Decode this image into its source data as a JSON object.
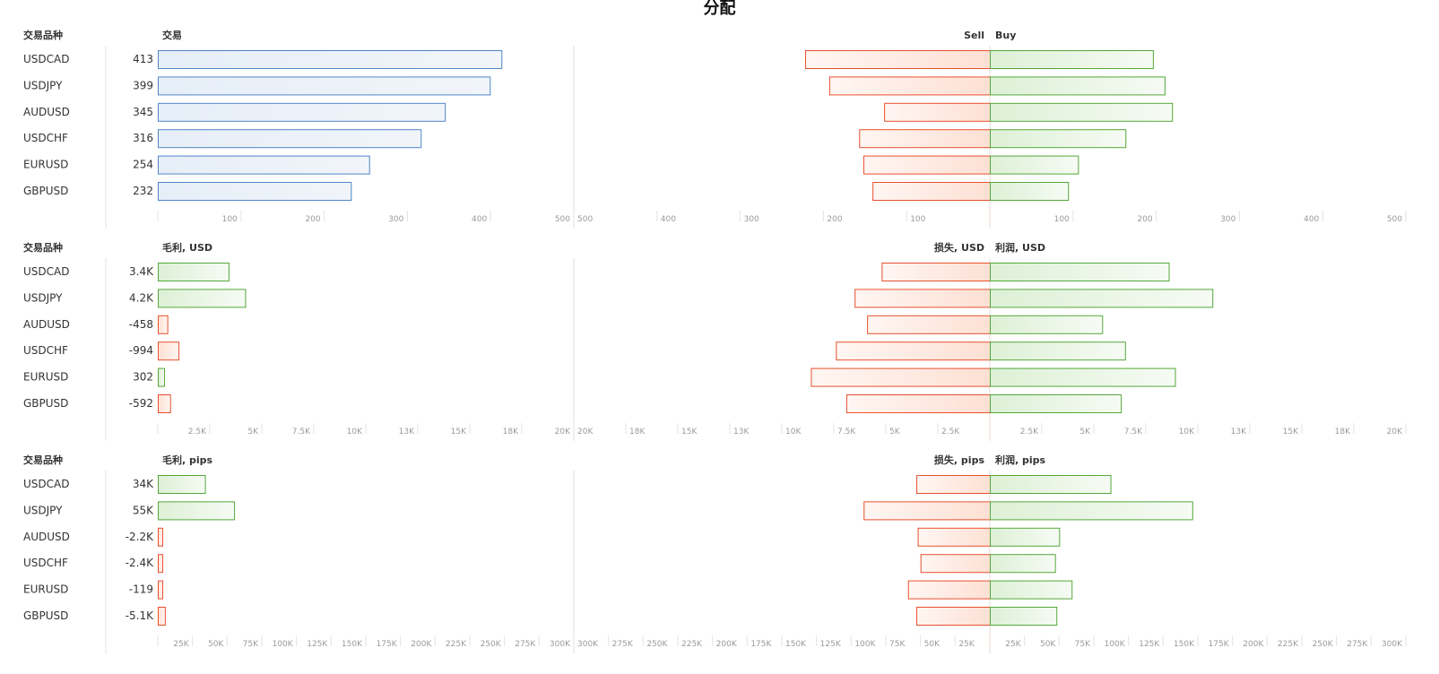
{
  "title": "分配",
  "colors": {
    "sell": "#e8502f",
    "buy": "#55a83a",
    "blue": "#4f86c9"
  },
  "chart_data": [
    {
      "type": "bar",
      "id": "trades",
      "category_header": "交易品种",
      "categories": [
        "USDCAD",
        "USDJPY",
        "AUDUSD",
        "USDCHF",
        "EURUSD",
        "GBPUSD"
      ],
      "left": {
        "header": "交易",
        "value_labels": [
          "413",
          "399",
          "345",
          "316",
          "254",
          "232"
        ],
        "values": [
          413,
          399,
          345,
          316,
          254,
          232
        ],
        "max": 500,
        "ticks": [
          100,
          200,
          300,
          400,
          500
        ],
        "tick_labels": [
          "100",
          "200",
          "300",
          "400",
          "500"
        ]
      },
      "sell": {
        "header": "Sell",
        "values": [
          222,
          193,
          127,
          157,
          152,
          141
        ]
      },
      "buy": {
        "header": "Buy",
        "values": [
          196,
          210,
          219,
          163,
          106,
          94
        ]
      },
      "right_max": 500,
      "right_ticks": [
        100,
        200,
        300,
        400,
        500
      ],
      "right_tick_labels": [
        "100",
        "200",
        "300",
        "400",
        "500"
      ]
    },
    {
      "type": "bar",
      "id": "profit-usd",
      "category_header": "交易品种",
      "categories": [
        "USDCAD",
        "USDJPY",
        "AUDUSD",
        "USDCHF",
        "EURUSD",
        "GBPUSD"
      ],
      "left": {
        "header": "毛利, USD",
        "value_labels": [
          "3.4K",
          "4.2K",
          "-458",
          "-994",
          "302",
          "-592"
        ],
        "values": [
          3400,
          4200,
          -458,
          -994,
          302,
          -592
        ],
        "max": 20000,
        "ticks": [
          2500,
          5000,
          7500,
          10000,
          12500,
          15000,
          17500,
          20000
        ],
        "tick_labels": [
          "2.5K",
          "5K",
          "7.5K",
          "10K",
          "13K",
          "15K",
          "18K",
          "20K"
        ]
      },
      "sell": {
        "header": "损失, USD",
        "values": [
          5200,
          6500,
          5900,
          7400,
          8600,
          6900
        ]
      },
      "buy": {
        "header": "利润, USD",
        "values": [
          8600,
          10700,
          5400,
          6500,
          8900,
          6300
        ]
      },
      "right_max": 20000,
      "right_ticks": [
        2500,
        5000,
        7500,
        10000,
        12500,
        15000,
        17500,
        20000
      ],
      "right_tick_labels": [
        "2.5K",
        "5K",
        "7.5K",
        "10K",
        "13K",
        "15K",
        "18K",
        "20K"
      ]
    },
    {
      "type": "bar",
      "id": "profit-pips",
      "category_header": "交易品种",
      "categories": [
        "USDCAD",
        "USDJPY",
        "AUDUSD",
        "USDCHF",
        "EURUSD",
        "GBPUSD"
      ],
      "left": {
        "header": "毛利, pips",
        "value_labels": [
          "34K",
          "55K",
          "-2.2K",
          "-2.4K",
          "-119",
          "-5.1K"
        ],
        "values": [
          34000,
          55000,
          -2200,
          -2400,
          -119,
          -5100
        ],
        "max": 300000,
        "ticks": [
          25000,
          50000,
          75000,
          100000,
          125000,
          150000,
          175000,
          200000,
          225000,
          250000,
          275000,
          300000
        ],
        "tick_labels": [
          "25K",
          "50K",
          "75K",
          "100K",
          "125K",
          "150K",
          "175K",
          "200K",
          "225K",
          "250K",
          "275K",
          "300K"
        ]
      },
      "sell": {
        "header": "损失, pips",
        "values": [
          53000,
          91000,
          52000,
          50000,
          59000,
          53000
        ]
      },
      "buy": {
        "header": "利润, pips",
        "values": [
          87000,
          146000,
          50000,
          47000,
          59000,
          48000
        ]
      },
      "right_max": 300000,
      "right_ticks": [
        25000,
        50000,
        75000,
        100000,
        125000,
        150000,
        175000,
        200000,
        225000,
        250000,
        275000,
        300000
      ],
      "right_tick_labels": [
        "25K",
        "50K",
        "75K",
        "100K",
        "125K",
        "150K",
        "175K",
        "200K",
        "225K",
        "250K",
        "275K",
        "300K"
      ]
    }
  ]
}
